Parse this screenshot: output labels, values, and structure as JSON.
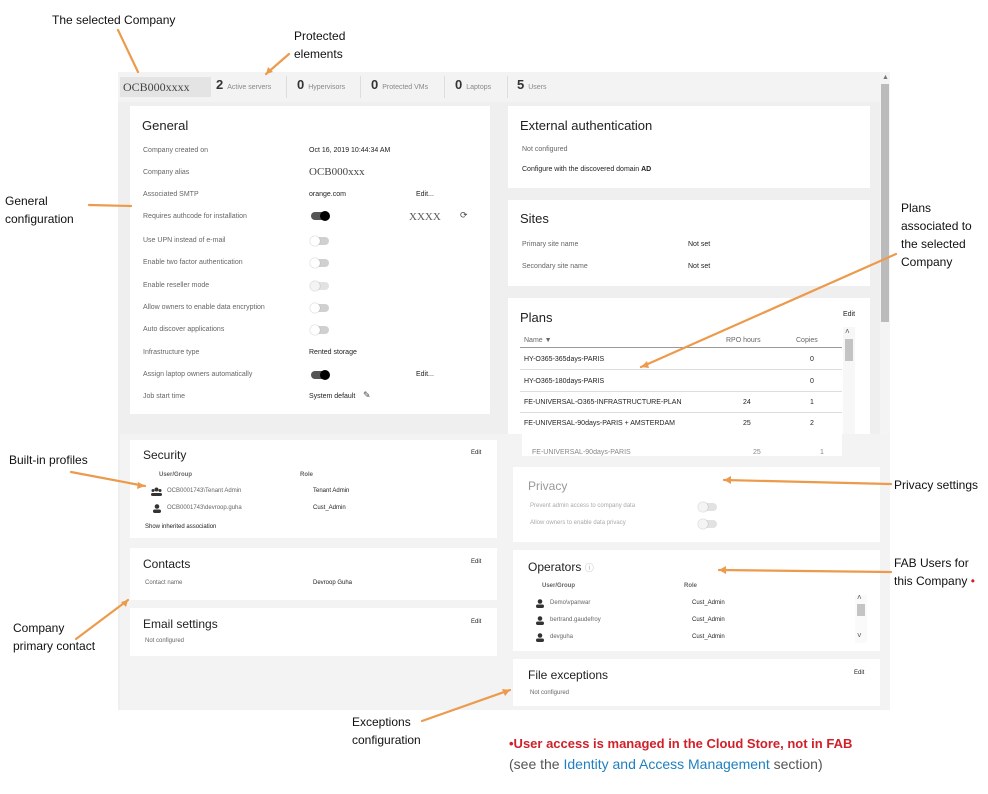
{
  "callouts": {
    "selected_company": "The selected Company",
    "protected_elements_1": "Protected",
    "protected_elements_2": "elements",
    "general_config_1": "General",
    "general_config_2": "configuration",
    "plans_1": "Plans",
    "plans_2": "associated to",
    "plans_3": "the selected",
    "plans_4": "Company",
    "builtin_profiles": "Built-in profiles",
    "privacy_settings": "Privacy settings",
    "fab_users_1": "FAB Users for",
    "fab_users_2": "this Company",
    "fab_users_bullet": "•",
    "primary_contact_1": "Company",
    "primary_contact_2": "primary contact",
    "exceptions_1": "Exceptions",
    "exceptions_2": "configuration",
    "colors": {
      "arrow": "#ec9a4c",
      "red_note": "#d0202a",
      "link": "#1f7fc1"
    }
  },
  "header": {
    "company": "OCB000xxxx",
    "stats": [
      {
        "num": "2",
        "label": "Active servers"
      },
      {
        "num": "0",
        "label": "Hypervisors"
      },
      {
        "num": "0",
        "label": "Protected VMs"
      },
      {
        "num": "0",
        "label": "Laptops"
      },
      {
        "num": "5",
        "label": "Users"
      }
    ]
  },
  "general": {
    "title": "General",
    "rows": [
      {
        "label": "Company created on",
        "value": "Oct 16, 2019 10:44:34 AM"
      },
      {
        "label": "Company alias",
        "value": "OCB000xxx"
      },
      {
        "label": "Associated SMTP",
        "value": "orange.com",
        "edit": "Edit..."
      },
      {
        "label": "Requires authcode for installation",
        "toggle": "on",
        "code": "XXXX"
      },
      {
        "label": "Use UPN instead of e-mail",
        "toggle": "off"
      },
      {
        "label": "Enable two factor authentication",
        "toggle": "off"
      },
      {
        "label": "Enable reseller mode",
        "toggle": "disabled"
      },
      {
        "label": "Allow owners to enable data encryption",
        "toggle": "off"
      },
      {
        "label": "Auto discover applications",
        "toggle": "off"
      },
      {
        "label": "Infrastructure type",
        "value": "Rented storage"
      },
      {
        "label": "Assign laptop owners automatically",
        "toggle": "on",
        "edit": "Edit..."
      },
      {
        "label": "Job start time",
        "value": "System default"
      }
    ]
  },
  "external_auth": {
    "title": "External authentication",
    "status": "Not configured",
    "action": "Configure with the discovered domain",
    "action_bold": "AD"
  },
  "sites": {
    "title": "Sites",
    "rows": [
      {
        "label": "Primary site name",
        "value": "Not set"
      },
      {
        "label": "Secondary site name",
        "value": "Not set"
      }
    ]
  },
  "plans": {
    "title": "Plans",
    "edit": "Edit",
    "columns": [
      "Name",
      "RPO hours",
      "Copies"
    ],
    "rows": [
      {
        "name": "HY-O365-365days-PARIS",
        "rpo": "",
        "copies": "0"
      },
      {
        "name": "HY-O365-180days-PARIS",
        "rpo": "",
        "copies": "0"
      },
      {
        "name": "FE-UNIVERSAL-O365-INFRASTRUCTURE-PLAN",
        "rpo": "24",
        "copies": "1"
      },
      {
        "name": "FE-UNIVERSAL-90days-PARIS + AMSTERDAM",
        "rpo": "25",
        "copies": "2"
      },
      {
        "name": "FE-UNIVERSAL-90days-PARIS",
        "rpo": "25",
        "copies": "1"
      }
    ]
  },
  "security": {
    "title": "Security",
    "edit": "Edit",
    "columns": [
      "User/Group",
      "Role"
    ],
    "rows": [
      {
        "user": "OCB0001743\\Tenant Admin",
        "role": "Tenant Admin",
        "icon": "group-icon"
      },
      {
        "user": "OCB0001743\\devroop.guha",
        "role": "Cust_Admin",
        "icon": "user-icon"
      }
    ],
    "inherited": "Show inherited association"
  },
  "privacy": {
    "title": "Privacy",
    "rows": [
      {
        "label": "Prevent admin access to company data"
      },
      {
        "label": "Allow owners to enable data privacy"
      }
    ]
  },
  "contacts": {
    "title": "Contacts",
    "edit": "Edit",
    "label": "Contact name",
    "value": "Devroop Guha"
  },
  "operators": {
    "title": "Operators",
    "columns": [
      "User/Group",
      "Role"
    ],
    "rows": [
      {
        "user": "Demo\\vpanwar",
        "role": "Cust_Admin"
      },
      {
        "user": "bertrand.gaudefroy",
        "role": "Cust_Admin"
      },
      {
        "user": "devguha",
        "role": "Cust_Admin"
      }
    ]
  },
  "email": {
    "title": "Email settings",
    "edit": "Edit",
    "status": "Not configured"
  },
  "file_exceptions": {
    "title": "File exceptions",
    "edit": "Edit",
    "status": "Not configured"
  },
  "note": {
    "line1": "•User access is managed in the Cloud Store, not in FAB",
    "line2_pre": "(see the",
    "line2_link": "Identity and Access Management",
    "line2_post": "section)"
  }
}
